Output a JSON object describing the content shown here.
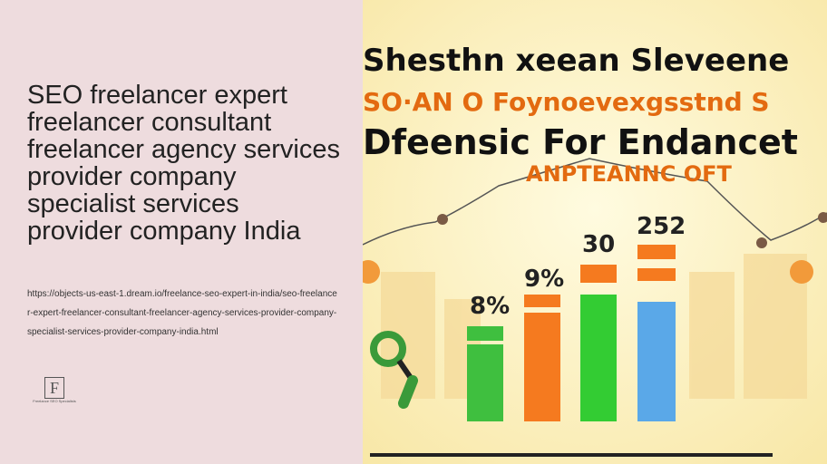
{
  "hero": {
    "title": "SEO freelancer expert freelancer consultant freelancer agency services provider company specialist services provider company India",
    "url": "https://objects-us-east-1.dream.io/freelance-seo-expert-in-india/seo-freelancer-expert-freelancer-consultant-freelancer-agency-services-provider-company-specialist-services-provider-company-india.html",
    "logo_caption": "Freelance SEO Specialists"
  },
  "image": {
    "headings": [
      "Shesthn xeean Sleveene",
      "SO·AN O Foynoevexgsstnd S",
      "Dfeensic For Endancet",
      "ANPTEANNC OFT"
    ],
    "bar_labels": [
      "8%",
      "9%",
      "30",
      "252"
    ]
  }
}
